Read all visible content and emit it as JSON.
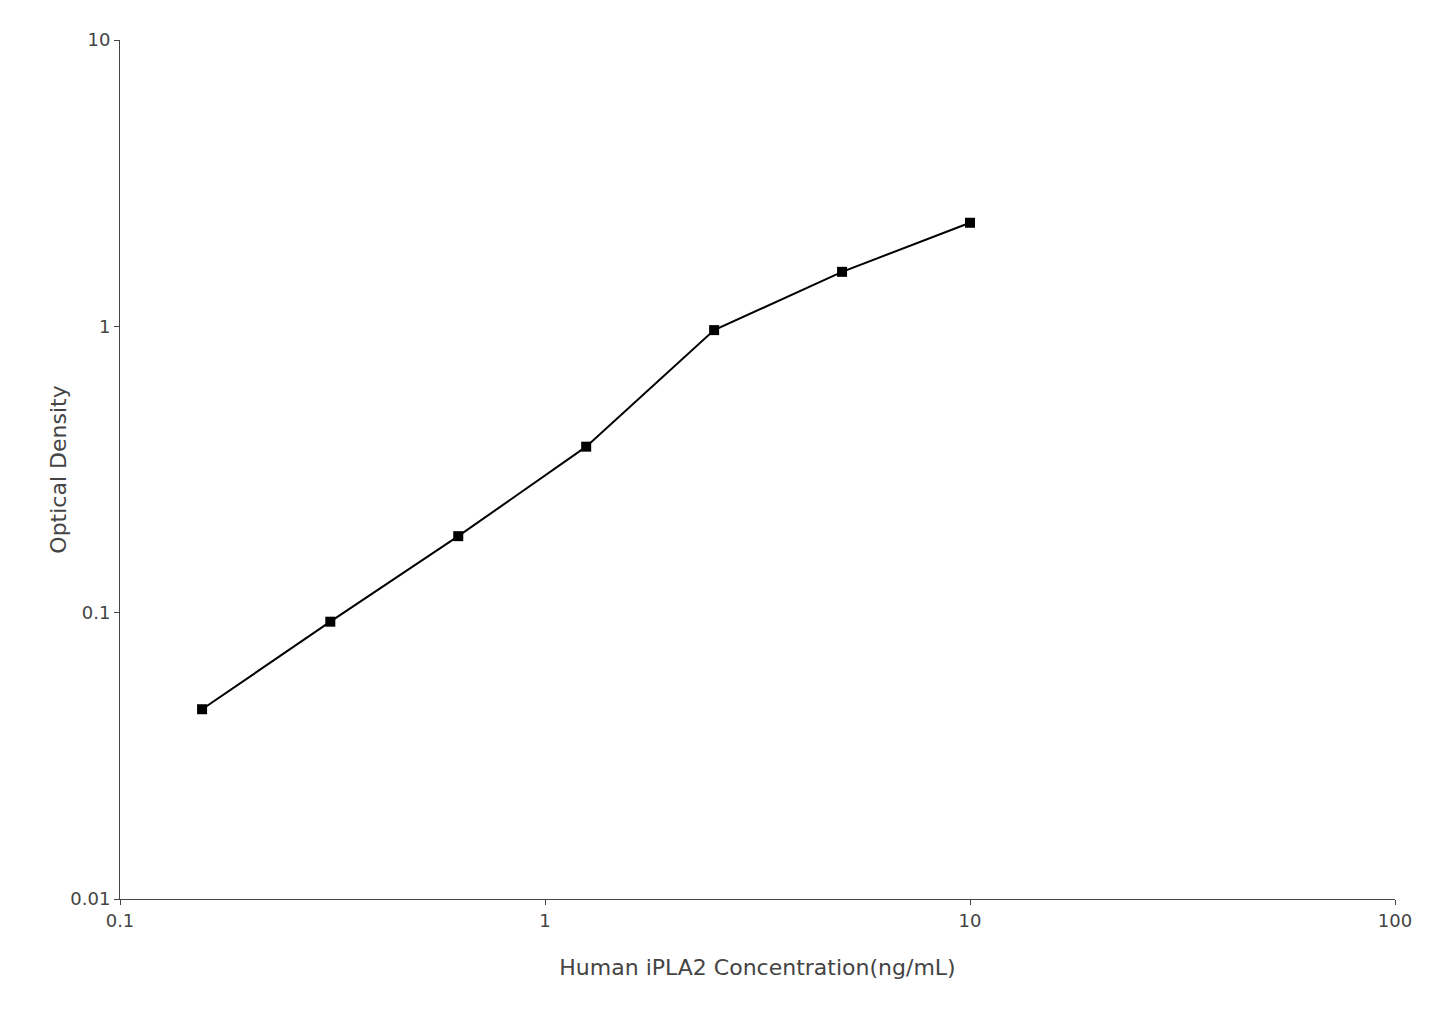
{
  "chart_data": {
    "type": "line",
    "xlabel": "Human iPLA2 Concentration(ng/mL)",
    "ylabel": "Optical Density",
    "x": [
      0.156,
      0.3125,
      0.625,
      1.25,
      2.5,
      5.0,
      10.0
    ],
    "values": [
      0.046,
      0.093,
      0.185,
      0.38,
      0.97,
      1.55,
      2.3
    ],
    "xlim": [
      0.1,
      100
    ],
    "ylim": [
      0.01,
      10
    ],
    "xticks": [
      0.1,
      1,
      10,
      100
    ],
    "yticks": [
      0.01,
      0.1,
      1,
      10
    ],
    "log": true,
    "grid": false,
    "color": "#000000",
    "marker": "square"
  }
}
